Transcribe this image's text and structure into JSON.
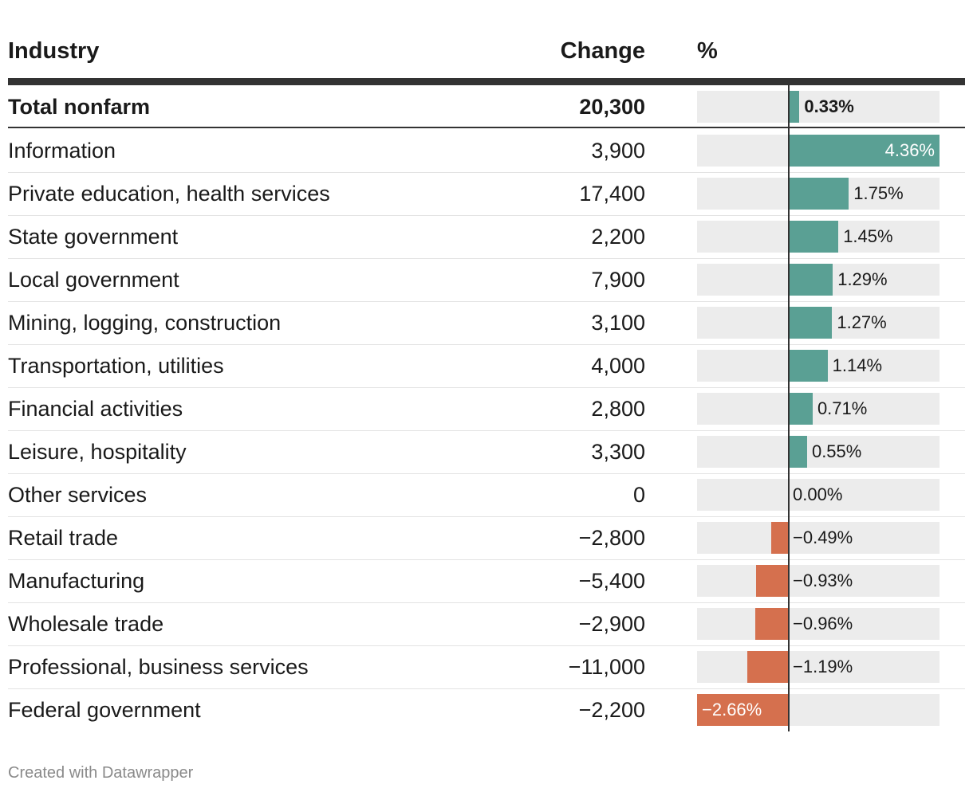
{
  "chart_data": {
    "type": "table",
    "columns": [
      "Industry",
      "Change",
      "%"
    ],
    "rows": [
      {
        "industry": "Total nonfarm",
        "change": "20,300",
        "pct": 0.33,
        "pct_label": "0.33%",
        "bold": true
      },
      {
        "industry": "Information",
        "change": "3,900",
        "pct": 4.36,
        "pct_label": "4.36%"
      },
      {
        "industry": "Private education, health services",
        "change": "17,400",
        "pct": 1.75,
        "pct_label": "1.75%"
      },
      {
        "industry": "State government",
        "change": "2,200",
        "pct": 1.45,
        "pct_label": "1.45%"
      },
      {
        "industry": "Local government",
        "change": "7,900",
        "pct": 1.29,
        "pct_label": "1.29%"
      },
      {
        "industry": "Mining, logging, construction",
        "change": "3,100",
        "pct": 1.27,
        "pct_label": "1.27%"
      },
      {
        "industry": "Transportation, utilities",
        "change": "4,000",
        "pct": 1.14,
        "pct_label": "1.14%"
      },
      {
        "industry": "Financial activities",
        "change": "2,800",
        "pct": 0.71,
        "pct_label": "0.71%"
      },
      {
        "industry": "Leisure, hospitality",
        "change": "3,300",
        "pct": 0.55,
        "pct_label": "0.55%"
      },
      {
        "industry": "Other services",
        "change": "0",
        "pct": 0.0,
        "pct_label": "0.00%"
      },
      {
        "industry": "Retail trade",
        "change": "−2,800",
        "pct": -0.49,
        "pct_label": "−0.49%"
      },
      {
        "industry": "Manufacturing",
        "change": "−5,400",
        "pct": -0.93,
        "pct_label": "−0.93%"
      },
      {
        "industry": "Wholesale trade",
        "change": "−2,900",
        "pct": -0.96,
        "pct_label": "−0.96%"
      },
      {
        "industry": "Professional, business services",
        "change": "−11,000",
        "pct": -1.19,
        "pct_label": "−1.19%"
      },
      {
        "industry": "Federal government",
        "change": "−2,200",
        "pct": -2.66,
        "pct_label": "−2.66%"
      }
    ],
    "pct_range": [
      -2.66,
      4.36
    ],
    "colors": {
      "positive": "#5aa094",
      "negative": "#d5704e",
      "bar_background": "#ececec"
    }
  },
  "header": {
    "industry": "Industry",
    "change": "Change",
    "pct": "%"
  },
  "footer": {
    "credit": "Created with Datawrapper"
  }
}
